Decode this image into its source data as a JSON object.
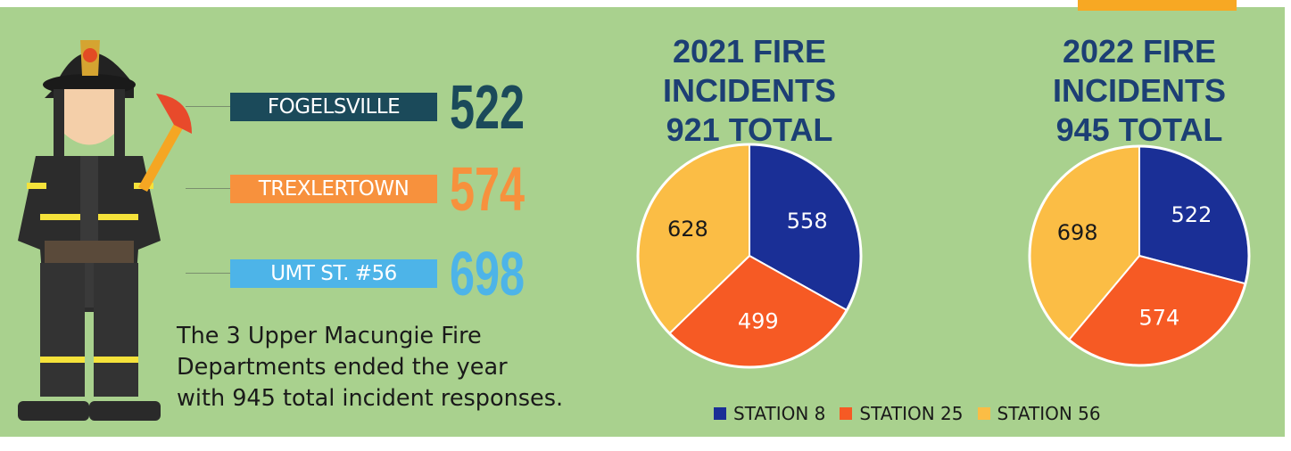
{
  "stations": [
    {
      "name": "FOGELSVILLE",
      "count": 522,
      "color": "#1b4a5a"
    },
    {
      "name": "TREXLERTOWN",
      "count": 574,
      "color": "#f7913d"
    },
    {
      "name": "UMT ST. #56",
      "count": 698,
      "color": "#4db4e8"
    }
  ],
  "blurb": [
    "The 3 Upper Macungie Fire",
    "Departments ended the year",
    "with 945 total incident responses."
  ],
  "legend": [
    {
      "name": "STATION 8",
      "color": "#1a2f96"
    },
    {
      "name": "STATION 25",
      "color": "#f65a24"
    },
    {
      "name": "STATION 56",
      "color": "#fbbd45"
    }
  ],
  "chart_data": [
    {
      "type": "pie",
      "title": "2021 FIRE INCIDENTS 921 TOTAL",
      "values": [
        558,
        499,
        628
      ],
      "colors": [
        "#1a2f96",
        "#f65a24",
        "#fbbd45"
      ],
      "label_colors": [
        "#ffffff",
        "#ffffff",
        "#1a1a1a"
      ]
    },
    {
      "type": "pie",
      "title": "2022 FIRE INCIDENTS 945 TOTAL",
      "values": [
        522,
        574,
        698
      ],
      "colors": [
        "#1a2f96",
        "#f65a24",
        "#fbbd45"
      ],
      "label_colors": [
        "#ffffff",
        "#ffffff",
        "#1a1a1a"
      ]
    }
  ]
}
